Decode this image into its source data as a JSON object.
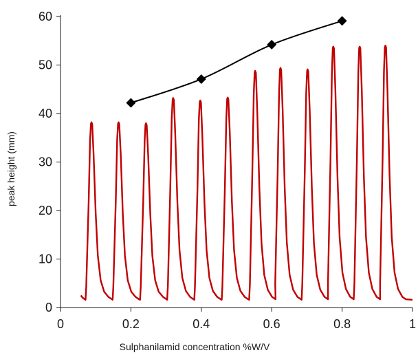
{
  "chart_data": {
    "type": "line",
    "title": "",
    "xlabel": "Sulphanilamid  concentration %W/V",
    "ylabel": "peak height (mm)",
    "xlim": [
      0,
      1
    ],
    "ylim": [
      0,
      60
    ],
    "x_ticks": [
      0,
      0.2,
      0.4,
      0.6,
      0.8,
      1
    ],
    "x_tick_labels": [
      "0",
      "0.2",
      "0.4",
      "0.6",
      "0.8",
      "1"
    ],
    "y_ticks": [
      0,
      10,
      20,
      30,
      40,
      50,
      60
    ],
    "y_tick_labels": [
      "0",
      "10",
      "20",
      "30",
      "40",
      "50",
      "60"
    ],
    "grid": false,
    "legend": "none",
    "series": [
      {
        "kind": "calibration",
        "color": "#000000",
        "marker": "diamond",
        "x": [
          0.2,
          0.4,
          0.6,
          0.8
        ],
        "y": [
          42.2,
          47.1,
          54.2,
          59.1
        ]
      },
      {
        "kind": "fia-peaks",
        "color": "#c00000",
        "baseline": 2.0,
        "peak_x": [
          0.088,
          0.165,
          0.243,
          0.32,
          0.397,
          0.475,
          0.553,
          0.625,
          0.702,
          0.775,
          0.85,
          0.923
        ],
        "peak_y": [
          38.2,
          38.2,
          38.0,
          43.2,
          42.7,
          43.3,
          48.8,
          49.4,
          49.1,
          53.8,
          53.8,
          54.0
        ],
        "x_start": 0.058,
        "x_end": 1.0
      }
    ]
  }
}
